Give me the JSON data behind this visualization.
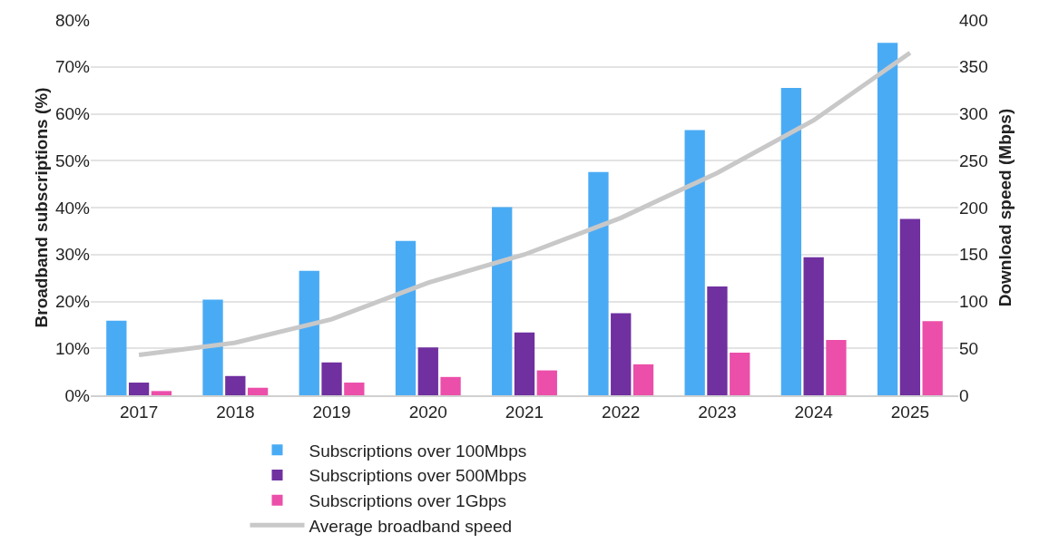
{
  "chart_data": {
    "type": "bar",
    "ylabel": "Broadband subscriptions (%)",
    "y2label": "Download speed (Mbps)",
    "categories": [
      "2017",
      "2018",
      "2019",
      "2020",
      "2021",
      "2022",
      "2023",
      "2024",
      "2025"
    ],
    "series": [
      {
        "name": "Subscriptions over 100Mbps",
        "color": "#4aabf5",
        "values": [
          15.9,
          20.4,
          26.5,
          32.9,
          40.1,
          47.6,
          56.5,
          65.5,
          75.1
        ]
      },
      {
        "name": "Subscriptions over 500Mbps",
        "color": "#7030a0",
        "values": [
          2.7,
          4.1,
          7.0,
          10.2,
          13.4,
          17.5,
          23.2,
          29.4,
          37.6
        ]
      },
      {
        "name": "Subscriptions over 1Gbps",
        "color": "#eb4faa",
        "values": [
          0.9,
          1.6,
          2.7,
          3.9,
          5.3,
          6.6,
          9.1,
          11.8,
          15.8
        ]
      },
      {
        "name": "Average broadband speed",
        "type": "line",
        "axis": "y2",
        "color": "#c8c8c8",
        "values": [
          43,
          56,
          81,
          120,
          150,
          189,
          237,
          293,
          365
        ]
      }
    ],
    "ylim": [
      0,
      80
    ],
    "yticks": [
      {
        "value": 0,
        "label": "0%"
      },
      {
        "value": 10,
        "label": "10%"
      },
      {
        "value": 20,
        "label": "20%"
      },
      {
        "value": 30,
        "label": "30%"
      },
      {
        "value": 40,
        "label": "40%"
      },
      {
        "value": 50,
        "label": "50%"
      },
      {
        "value": 60,
        "label": "60%"
      },
      {
        "value": 70,
        "label": "70%"
      },
      {
        "value": 80,
        "label": "80%"
      }
    ],
    "y2lim": [
      0,
      400
    ],
    "y2ticks": [
      0,
      50,
      100,
      150,
      200,
      250,
      300,
      350,
      400
    ],
    "grid": "y",
    "legend": "bottom",
    "marker": "none",
    "line_style": "solid"
  }
}
